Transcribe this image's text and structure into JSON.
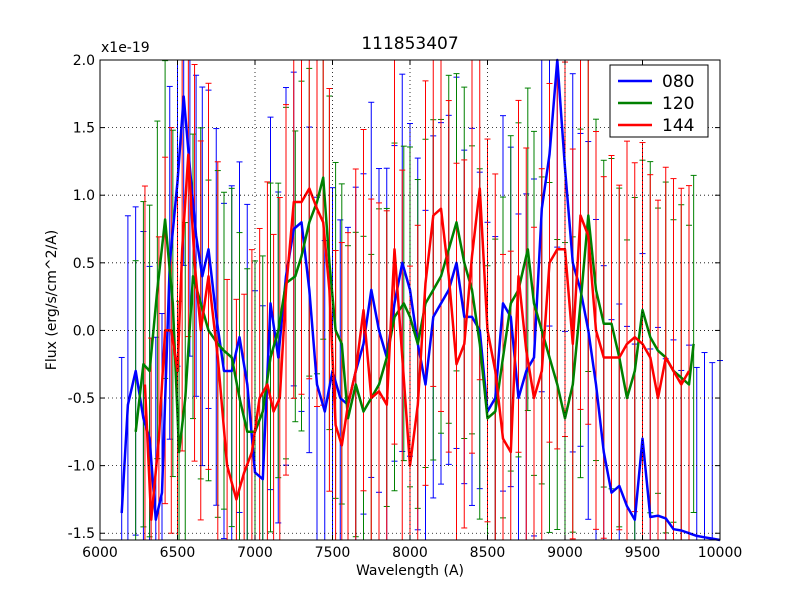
{
  "chart_data": {
    "type": "line",
    "title": "111853407",
    "xlabel": "Wavelength (A)",
    "ylabel": "Flux (erg/s/cm^2/A)",
    "y_scale_label": "x1e-19",
    "xlim": [
      6000,
      10000
    ],
    "ylim": [
      -1.55,
      2.0
    ],
    "grid": true,
    "legend_position": "top-right",
    "x_ticks": [
      6000,
      6500,
      7000,
      7500,
      8000,
      8500,
      9000,
      9500,
      10000
    ],
    "x_tick_labels": [
      "6000",
      "6500",
      "7000",
      "7500",
      "8000",
      "8500",
      "9000",
      "9500",
      "10000"
    ],
    "y_ticks": [
      -1.5,
      -1.0,
      -0.5,
      0.0,
      0.5,
      1.0,
      1.5,
      2.0
    ],
    "y_tick_labels": [
      "-1.5",
      "-1.0",
      "-0.5",
      "0.0",
      "0.5",
      "1.0",
      "1.5",
      "2.0"
    ],
    "series": [
      {
        "name": "080",
        "color": "#0000ff",
        "x": [
          6140,
          6180,
          6230,
          6280,
          6320,
          6360,
          6400,
          6450,
          6500,
          6540,
          6580,
          6620,
          6660,
          6700,
          6750,
          6800,
          6850,
          6900,
          6950,
          7000,
          7050,
          7100,
          7150,
          7200,
          7250,
          7300,
          7350,
          7400,
          7450,
          7500,
          7550,
          7600,
          7650,
          7700,
          7750,
          7800,
          7850,
          7900,
          7950,
          8000,
          8050,
          8100,
          8150,
          8200,
          8250,
          8300,
          8350,
          8400,
          8450,
          8500,
          8550,
          8600,
          8650,
          8700,
          8750,
          8800,
          8850,
          8900,
          8950,
          9000,
          9050,
          9100,
          9150,
          9200,
          9250,
          9300,
          9350,
          9400,
          9450,
          9500,
          9550,
          9600,
          9650,
          9700,
          9750,
          9800,
          9850,
          9900,
          9950,
          10000
        ],
        "y": [
          -1.35,
          -0.55,
          -0.3,
          -0.65,
          -0.8,
          -1.4,
          -1.2,
          0.5,
          1.1,
          1.73,
          1.2,
          0.7,
          0.4,
          0.6,
          0.1,
          -0.3,
          -0.3,
          -0.05,
          -0.4,
          -1.05,
          -1.1,
          0.2,
          -0.2,
          0.4,
          0.75,
          0.8,
          0.3,
          -0.4,
          -0.6,
          -0.3,
          -0.5,
          -0.55,
          -0.3,
          -0.1,
          0.3,
          0.0,
          -0.2,
          0.2,
          0.5,
          0.3,
          -0.1,
          -0.4,
          0.1,
          0.2,
          0.3,
          0.5,
          0.1,
          0.1,
          0.0,
          -0.6,
          -0.5,
          0.2,
          0.1,
          -0.5,
          -0.3,
          -0.2,
          0.9,
          1.3,
          2.0,
          1.2,
          0.5,
          0.3,
          0.0,
          -0.4,
          -0.9,
          -1.2,
          -1.15,
          -1.3,
          -1.4,
          -0.8,
          -1.38,
          -1.37,
          -1.39,
          -1.47,
          -1.48,
          -1.5,
          -1.52,
          -1.53,
          -1.54,
          -1.55
        ]
      },
      {
        "name": "120",
        "color": "#008000",
        "x": [
          6230,
          6280,
          6320,
          6370,
          6420,
          6470,
          6510,
          6550,
          6600,
          6650,
          6700,
          6760,
          6800,
          6850,
          6900,
          6950,
          7000,
          7050,
          7100,
          7150,
          7200,
          7260,
          7300,
          7350,
          7400,
          7440,
          7480,
          7520,
          7560,
          7600,
          7650,
          7700,
          7750,
          7800,
          7850,
          7900,
          7960,
          8000,
          8050,
          8100,
          8150,
          8200,
          8250,
          8300,
          8350,
          8400,
          8450,
          8500,
          8550,
          8600,
          8650,
          8700,
          8760,
          8800,
          8850,
          8900,
          8950,
          9000,
          9050,
          9100,
          9150,
          9200,
          9250,
          9300,
          9350,
          9400,
          9450,
          9500,
          9550,
          9600,
          9650,
          9700,
          9750,
          9800,
          9830
        ],
        "y": [
          -0.75,
          -0.25,
          -0.3,
          0.3,
          0.82,
          0.2,
          -0.9,
          -0.5,
          0.4,
          0.2,
          0.0,
          -0.1,
          -0.15,
          -0.2,
          -0.5,
          -0.75,
          -0.75,
          -0.6,
          -0.2,
          0.0,
          0.35,
          0.4,
          0.55,
          0.8,
          0.95,
          1.13,
          0.5,
          0.0,
          -0.1,
          -0.65,
          -0.4,
          -0.6,
          -0.5,
          -0.4,
          -0.2,
          0.1,
          0.2,
          0.1,
          -0.1,
          0.2,
          0.3,
          0.4,
          0.6,
          0.8,
          0.5,
          0.3,
          -0.1,
          -0.65,
          -0.6,
          -0.2,
          0.2,
          0.3,
          0.6,
          0.2,
          0.0,
          -0.2,
          -0.4,
          -0.65,
          -0.4,
          0.2,
          0.85,
          0.3,
          0.05,
          0.05,
          -0.2,
          -0.5,
          -0.3,
          0.15,
          -0.05,
          -0.15,
          -0.2,
          -0.3,
          -0.35,
          -0.4,
          -0.1
        ]
      },
      {
        "name": "144",
        "color": "#ff0000",
        "x": [
          6290,
          6330,
          6380,
          6420,
          6460,
          6500,
          6530,
          6570,
          6610,
          6650,
          6700,
          6760,
          6820,
          6880,
          6930,
          6980,
          7030,
          7080,
          7120,
          7160,
          7200,
          7250,
          7300,
          7350,
          7400,
          7440,
          7480,
          7520,
          7560,
          7600,
          7650,
          7700,
          7750,
          7800,
          7850,
          7900,
          7950,
          8000,
          8050,
          8100,
          8150,
          8200,
          8250,
          8300,
          8350,
          8400,
          8450,
          8500,
          8550,
          8600,
          8650,
          8700,
          8750,
          8800,
          8850,
          8900,
          8950,
          9000,
          9050,
          9100,
          9150,
          9200,
          9250,
          9300,
          9350,
          9400,
          9450,
          9500,
          9550,
          9600,
          9650,
          9700,
          9750,
          9800
        ],
        "y": [
          -0.4,
          -1.4,
          -0.8,
          0.0,
          0.0,
          -0.3,
          0.6,
          1.3,
          0.5,
          0.0,
          0.4,
          -0.2,
          -1.0,
          -1.25,
          -1.05,
          -0.9,
          -0.5,
          -0.4,
          -0.6,
          -0.5,
          0.3,
          0.95,
          0.95,
          1.05,
          0.9,
          0.8,
          0.3,
          -0.7,
          -0.85,
          -0.55,
          -0.3,
          0.15,
          -0.5,
          -0.45,
          -0.55,
          0.6,
          -0.2,
          -1.0,
          -0.55,
          0.35,
          0.85,
          0.9,
          0.4,
          -0.25,
          -0.1,
          0.55,
          1.05,
          0.0,
          -0.3,
          -0.8,
          -0.9,
          0.4,
          -0.15,
          -0.5,
          -0.3,
          0.5,
          0.6,
          0.6,
          -0.1,
          0.85,
          0.7,
          0.0,
          -0.2,
          -0.2,
          -0.2,
          -0.1,
          -0.05,
          -0.1,
          -0.2,
          -0.5,
          -0.2,
          -0.3,
          -0.4,
          -0.3
        ]
      }
    ]
  }
}
